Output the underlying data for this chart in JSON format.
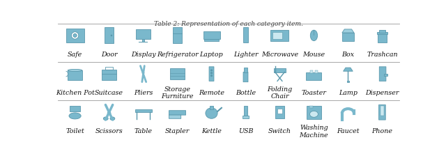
{
  "title": "Table 2: Representation of each category item.",
  "background_color": "#ffffff",
  "rows": [
    {
      "labels": [
        "Safe",
        "Door",
        "Display",
        "Refrigerator",
        "Laptop",
        "Lighter",
        "Microwave",
        "Mouse",
        "Box",
        "Trashcan"
      ]
    },
    {
      "labels": [
        "Kitchen Pot",
        "Suitcase",
        "Pliers",
        "Storage\nFurniture",
        "Remote",
        "Bottle",
        "Folding\nChair",
        "Toaster",
        "Lamp",
        "Dispenser"
      ]
    },
    {
      "labels": [
        "Toilet",
        "Scissors",
        "Table",
        "Stapler",
        "Kettle",
        "USB",
        "Switch",
        "Washing\nMachine",
        "Faucet",
        "Phone"
      ]
    }
  ],
  "n_cols": 10,
  "n_rows": 3,
  "label_fontsize": 6.8,
  "label_style": "italic",
  "label_weight": "normal",
  "label_color": "#111111",
  "line_color": "#999999",
  "title_fontsize": 6.5,
  "title_color": "#444444",
  "icon_color": "#7ab8cc",
  "icon_edge_color": "#5a98ac"
}
